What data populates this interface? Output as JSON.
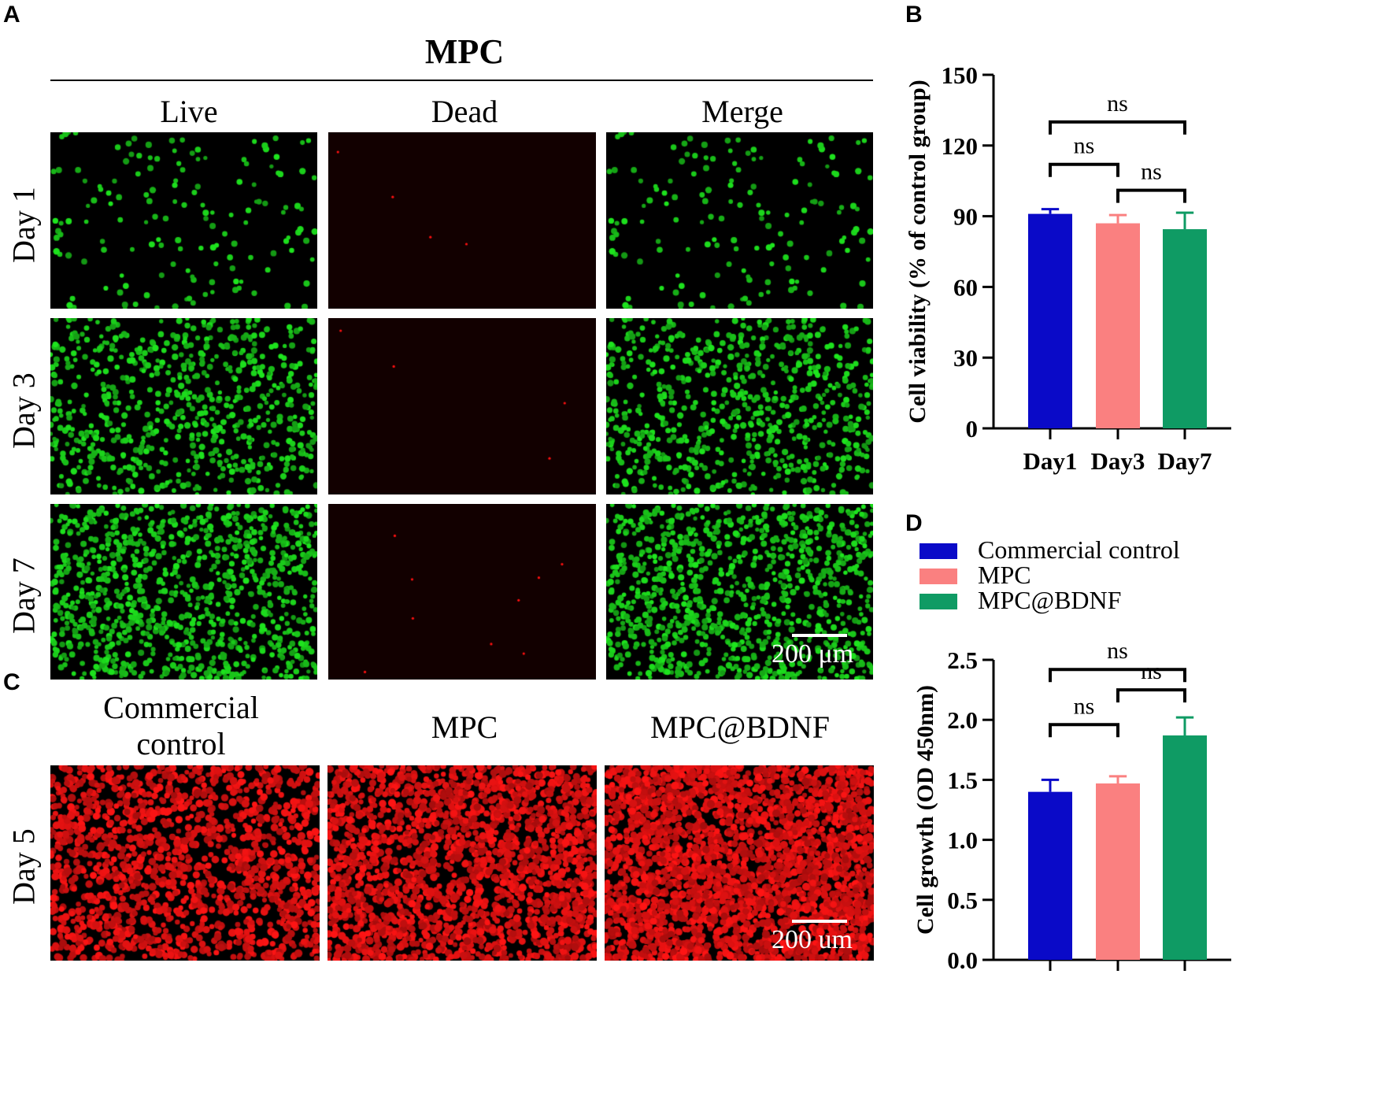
{
  "panels": {
    "A": "A",
    "B": "B",
    "C": "C",
    "D": "D"
  },
  "panel_a": {
    "title": "MPC",
    "columns": [
      "Live",
      "Dead",
      "Merge"
    ],
    "rows": [
      "Day 1",
      "Day 3",
      "Day 7"
    ],
    "scale_bar": "200 μm"
  },
  "panel_c": {
    "columns": [
      "Commercial\ncontrol",
      "MPC",
      "MPC@BDNF"
    ],
    "col1_line1": "Commercial",
    "col1_line2": "control",
    "col2": "MPC",
    "col3": "MPC@BDNF",
    "row": "Day 5",
    "scale_bar": "200 um"
  },
  "colors": {
    "live": "#18e018",
    "dead": "#ff1010",
    "commercial": "#0a0ac8",
    "mpc": "#fa8080",
    "bdnf": "#0f9b64"
  },
  "chart_data": [
    {
      "id": "B",
      "type": "bar",
      "categories": [
        "Day1",
        "Day3",
        "Day7"
      ],
      "values": [
        91,
        87,
        84.5
      ],
      "errors": [
        2,
        3.5,
        7
      ],
      "colors": [
        "#0a0ac8",
        "#fa8080",
        "#0f9b64"
      ],
      "ylabel": "Cell viability (% of control group)",
      "ylim": [
        0,
        150
      ],
      "yticks": [
        0,
        30,
        60,
        90,
        120,
        150
      ],
      "ytick_labels": [
        "0",
        "30",
        "60",
        "90",
        "120",
        "150"
      ],
      "significance": [
        {
          "from": 0,
          "to": 2,
          "label": "ns",
          "level": 130
        },
        {
          "from": 0,
          "to": 1,
          "label": "ns",
          "level": 112
        },
        {
          "from": 1,
          "to": 2,
          "label": "ns",
          "level": 101
        }
      ]
    },
    {
      "id": "D",
      "type": "bar",
      "categories": [
        "Commercial control",
        "MPC",
        "MPC@BDNF"
      ],
      "values": [
        1.4,
        1.47,
        1.87
      ],
      "errors": [
        0.1,
        0.06,
        0.15
      ],
      "colors": [
        "#0a0ac8",
        "#fa8080",
        "#0f9b64"
      ],
      "ylabel": "Cell growth (OD 450nm)",
      "ylim": [
        0,
        2.5
      ],
      "yticks": [
        0,
        0.5,
        1.0,
        1.5,
        2.0,
        2.5
      ],
      "ytick_labels": [
        "0.0",
        "0.5",
        "1.0",
        "1.5",
        "2.0",
        "2.5"
      ],
      "legend": [
        "Commercial control",
        "MPC",
        "MPC@BDNF"
      ],
      "significance": [
        {
          "from": 0,
          "to": 2,
          "label": "ns",
          "level": 2.42
        },
        {
          "from": 1,
          "to": 2,
          "label": "ns",
          "level": 2.25
        },
        {
          "from": 0,
          "to": 1,
          "label": "ns",
          "level": 1.96
        }
      ]
    }
  ]
}
